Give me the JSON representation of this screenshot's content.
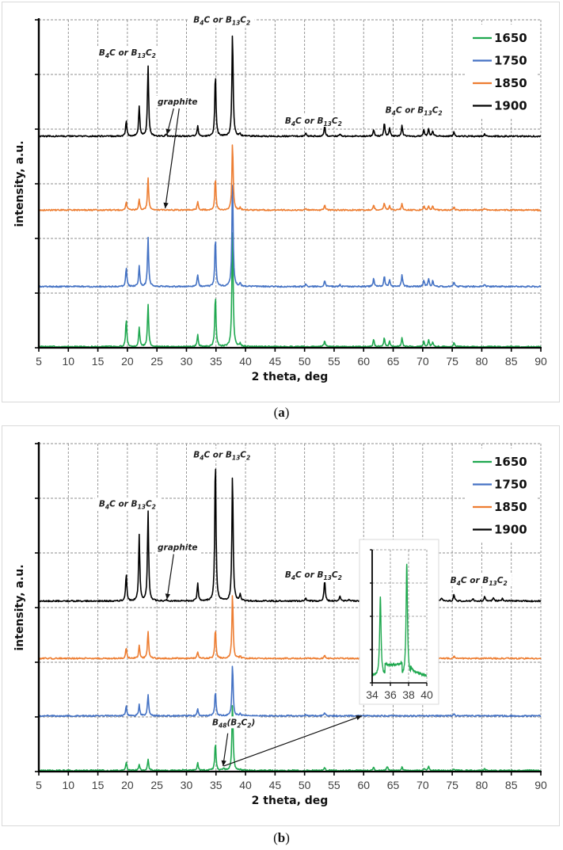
{
  "panels": [
    {
      "id": "a",
      "caption_label": "a"
    },
    {
      "id": "b",
      "caption_label": "b"
    }
  ],
  "chart_data": [
    {
      "panel": "a",
      "type": "line",
      "title": "",
      "xlabel": "2 theta, deg",
      "ylabel": "intensity, a.u.",
      "xlim": [
        5,
        90
      ],
      "xticks": [
        5,
        10,
        15,
        20,
        25,
        30,
        35,
        40,
        45,
        50,
        55,
        60,
        65,
        70,
        75,
        80,
        85,
        90
      ],
      "ylim": [
        0,
        6
      ],
      "yticks_count": 7,
      "grid": true,
      "legend_position": "upper right",
      "legend": [
        "1650",
        "1750",
        "1850",
        "1900"
      ],
      "series": [
        {
          "name": "1650",
          "color": "#1fa84f",
          "offset": 0.0,
          "peaks": [
            [
              19.8,
              0.5
            ],
            [
              22.0,
              0.35
            ],
            [
              23.5,
              0.78
            ],
            [
              31.9,
              0.22
            ],
            [
              34.9,
              0.95
            ],
            [
              37.8,
              2.2
            ],
            [
              39.1,
              0.05
            ],
            [
              53.4,
              0.12
            ],
            [
              61.7,
              0.14
            ],
            [
              63.5,
              0.17
            ],
            [
              64.4,
              0.1
            ],
            [
              66.5,
              0.17
            ],
            [
              70.2,
              0.1
            ],
            [
              71.0,
              0.12
            ],
            [
              71.7,
              0.09
            ],
            [
              75.3,
              0.08
            ]
          ]
        },
        {
          "name": "1750",
          "color": "#4472c4",
          "offset": 1.1,
          "peaks": [
            [
              19.8,
              0.35
            ],
            [
              22.0,
              0.38
            ],
            [
              23.5,
              0.9
            ],
            [
              31.9,
              0.22
            ],
            [
              34.9,
              0.9
            ],
            [
              37.8,
              1.95
            ],
            [
              39.1,
              0.06
            ],
            [
              50.2,
              0.05
            ],
            [
              53.4,
              0.12
            ],
            [
              56.0,
              0.03
            ],
            [
              61.7,
              0.15
            ],
            [
              63.5,
              0.2
            ],
            [
              64.4,
              0.12
            ],
            [
              66.5,
              0.22
            ],
            [
              70.2,
              0.12
            ],
            [
              71.0,
              0.13
            ],
            [
              71.7,
              0.1
            ],
            [
              75.3,
              0.08
            ],
            [
              80.5,
              0.04
            ]
          ]
        },
        {
          "name": "1850",
          "color": "#ed7d31",
          "offset": 2.5,
          "peaks": [
            [
              19.8,
              0.15
            ],
            [
              22.0,
              0.2
            ],
            [
              23.5,
              0.58
            ],
            [
              31.9,
              0.15
            ],
            [
              34.9,
              0.6
            ],
            [
              37.8,
              1.25
            ],
            [
              39.1,
              0.04
            ],
            [
              50.2,
              0.03
            ],
            [
              53.4,
              0.1
            ],
            [
              61.7,
              0.1
            ],
            [
              63.5,
              0.13
            ],
            [
              64.4,
              0.08
            ],
            [
              66.5,
              0.12
            ],
            [
              70.2,
              0.08
            ],
            [
              71.0,
              0.08
            ],
            [
              71.7,
              0.07
            ],
            [
              75.3,
              0.05
            ],
            [
              80.5,
              0.03
            ]
          ]
        },
        {
          "name": "1900",
          "color": "#000000",
          "offset": 3.85,
          "peaks": [
            [
              19.8,
              0.28
            ],
            [
              22.0,
              0.55
            ],
            [
              23.5,
              1.3
            ],
            [
              26.6,
              0.04
            ],
            [
              31.9,
              0.2
            ],
            [
              34.9,
              1.15
            ],
            [
              37.8,
              1.92
            ],
            [
              39.1,
              0.05
            ],
            [
              50.2,
              0.06
            ],
            [
              53.4,
              0.2
            ],
            [
              56.0,
              0.04
            ],
            [
              61.7,
              0.12
            ],
            [
              63.5,
              0.25
            ],
            [
              64.4,
              0.15
            ],
            [
              66.5,
              0.2
            ],
            [
              70.2,
              0.12
            ],
            [
              71.0,
              0.14
            ],
            [
              71.7,
              0.1
            ],
            [
              75.3,
              0.08
            ],
            [
              80.5,
              0.05
            ]
          ]
        }
      ],
      "annotations": [
        {
          "text": "B4C or B13C2",
          "x": 20.0,
          "y": 5.35
        },
        {
          "text": "B4C or B13C2",
          "x": 36.0,
          "y": 5.95
        },
        {
          "text": "graphite",
          "x": 28.5,
          "y": 4.45
        },
        {
          "text": "B4C or B13C2",
          "x": 51.5,
          "y": 4.1
        },
        {
          "text": "B4C or B13C2",
          "x": 68.5,
          "y": 4.3
        }
      ]
    },
    {
      "panel": "b",
      "type": "line",
      "title": "",
      "xlabel": "2 theta, deg",
      "ylabel": "intensity, a.u.",
      "xlim": [
        5,
        90
      ],
      "xticks": [
        5,
        10,
        15,
        20,
        25,
        30,
        35,
        40,
        45,
        50,
        55,
        60,
        65,
        70,
        75,
        80,
        85,
        90
      ],
      "ylim": [
        0,
        6
      ],
      "yticks_count": 7,
      "grid": true,
      "legend_position": "upper right",
      "legend": [
        "1650",
        "1750",
        "1850",
        "1900"
      ],
      "series": [
        {
          "name": "1650",
          "color": "#1fa84f",
          "offset": 0.0,
          "peaks": [
            [
              19.8,
              0.15
            ],
            [
              22.0,
              0.12
            ],
            [
              23.5,
              0.2
            ],
            [
              29.5,
              0.02
            ],
            [
              31.9,
              0.15
            ],
            [
              34.9,
              0.5
            ],
            [
              36.3,
              0.05
            ],
            [
              37.8,
              1.25
            ],
            [
              39.1,
              0.02
            ],
            [
              53.4,
              0.06
            ],
            [
              61.7,
              0.05
            ],
            [
              64.0,
              0.08
            ],
            [
              66.5,
              0.07
            ],
            [
              70.2,
              0.04
            ],
            [
              71.0,
              0.07
            ],
            [
              75.3,
              0.03
            ],
            [
              80.5,
              0.03
            ]
          ]
        },
        {
          "name": "1750",
          "color": "#4472c4",
          "offset": 1.0,
          "peaks": [
            [
              19.8,
              0.18
            ],
            [
              22.0,
              0.2
            ],
            [
              23.5,
              0.4
            ],
            [
              31.9,
              0.12
            ],
            [
              34.9,
              0.45
            ],
            [
              37.8,
              0.95
            ],
            [
              39.1,
              0.04
            ],
            [
              50.2,
              0.03
            ],
            [
              53.4,
              0.06
            ],
            [
              75.3,
              0.04
            ]
          ]
        },
        {
          "name": "1850",
          "color": "#ed7d31",
          "offset": 2.05,
          "peaks": [
            [
              19.8,
              0.2
            ],
            [
              22.0,
              0.23
            ],
            [
              23.5,
              0.5
            ],
            [
              31.9,
              0.12
            ],
            [
              34.9,
              0.55
            ],
            [
              37.8,
              1.2
            ],
            [
              39.1,
              0.04
            ],
            [
              53.4,
              0.06
            ],
            [
              75.3,
              0.04
            ]
          ]
        },
        {
          "name": "1900",
          "color": "#000000",
          "offset": 3.1,
          "peaks": [
            [
              19.8,
              0.5
            ],
            [
              22.0,
              1.2
            ],
            [
              23.5,
              1.65
            ],
            [
              26.6,
              0.03
            ],
            [
              31.9,
              0.32
            ],
            [
              34.9,
              2.65
            ],
            [
              37.8,
              2.35
            ],
            [
              39.1,
              0.12
            ],
            [
              50.2,
              0.06
            ],
            [
              53.4,
              0.38
            ],
            [
              56.0,
              0.1
            ],
            [
              57.5,
              0.03
            ],
            [
              73.2,
              0.06
            ],
            [
              75.3,
              0.12
            ],
            [
              78.5,
              0.05
            ],
            [
              80.5,
              0.08
            ],
            [
              82.0,
              0.07
            ],
            [
              83.5,
              0.06
            ]
          ]
        }
      ],
      "annotations": [
        {
          "text": "B4C or B13C2",
          "x": 20.0,
          "y": 4.85
        },
        {
          "text": "B4C or B13C2",
          "x": 36.0,
          "y": 5.75
        },
        {
          "text": "graphite",
          "x": 28.5,
          "y": 4.05
        },
        {
          "text": "B4C or B13C2",
          "x": 51.5,
          "y": 3.55
        },
        {
          "text": "B4C or B13C2",
          "x": 79.5,
          "y": 3.45
        },
        {
          "text": "B48(B2C2)",
          "x": 38.0,
          "y": 0.85
        }
      ],
      "inset": {
        "type": "line",
        "series": "1650",
        "xlim": [
          34,
          40
        ],
        "xticks": [
          34,
          36,
          38,
          40
        ],
        "yticks_count": 5,
        "peaks": [
          [
            34.9,
            0.6
          ],
          [
            37.8,
            0.85
          ]
        ],
        "plateau_36_37": 0.12
      }
    }
  ],
  "captions": {
    "a": "a",
    "b": "b"
  }
}
